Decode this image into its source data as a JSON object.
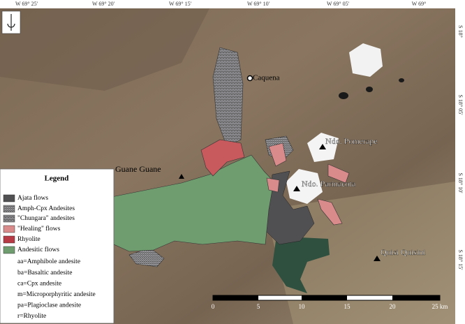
{
  "top_labels": [
    "W 69° 25'",
    "W 69° 20'",
    "W 69° 15'",
    "W 69° 10'",
    "W 69° 05'",
    "W 69°"
  ],
  "right_labels": [
    "S 18°",
    "S 18° 05'",
    "S 18° 10'",
    "S 18° 15'"
  ],
  "places": [
    "Caquena",
    "Guane Guane",
    "Ndo. Pomerape",
    "Ndo. Parinacota",
    "Quisi Quisini"
  ],
  "legend": {
    "title": "Legend",
    "items": [
      "Ajata flows",
      "Amph-Cpx Andesites",
      "\"Chungara\" andesites",
      "\"Healing\" flows",
      "Rhyolite",
      "Andesitic flows"
    ],
    "notes": [
      "aa=Amphibole andesite",
      "ba=Basaltic andesite",
      "ca=Cpx andesite",
      "m=Microporphyritic andesite",
      "pa=Plagioclase andesite",
      "r=Rhyolite"
    ]
  },
  "scale_bar": {
    "labels": [
      "0",
      "5",
      "10",
      "15",
      "20",
      "25 km"
    ]
  }
}
